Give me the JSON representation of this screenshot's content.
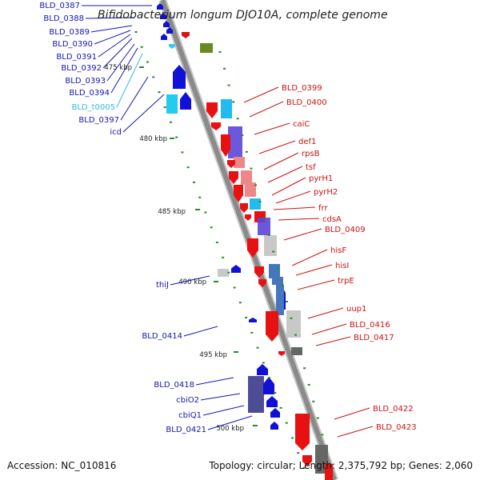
{
  "title": "Bifidobacterium longum DJO10A, complete genome",
  "accession": "Accession: NC_010816",
  "summary": "Topology: circular; Length: 2,375,792 bp; Genes: 2,060",
  "colors": {
    "left_label": "#1414b4",
    "right_label": "#cc1111",
    "trna_label": "#33bbdd",
    "tick": "#2a8a2a",
    "backbone": "#8a8a8a"
  },
  "scale_ticks": [
    "475 kbp",
    "480 kbp",
    "485 kbp",
    "490 kbp",
    "495 kbp",
    "500 kbp"
  ],
  "left_labels": [
    {
      "text": "BLD_0387",
      "kind": "cds"
    },
    {
      "text": "BLD_0388",
      "kind": "cds"
    },
    {
      "text": "BLD_0389",
      "kind": "cds"
    },
    {
      "text": "BLD_0390",
      "kind": "cds"
    },
    {
      "text": "BLD_0391",
      "kind": "cds"
    },
    {
      "text": "BLD_0392",
      "kind": "cds"
    },
    {
      "text": "BLD_0393",
      "kind": "cds"
    },
    {
      "text": "BLD_0394",
      "kind": "cds"
    },
    {
      "text": "BLD_t0005",
      "kind": "trna"
    },
    {
      "text": "BLD_0397",
      "kind": "cds"
    },
    {
      "text": "icd",
      "kind": "cds"
    },
    {
      "text": "thiJ",
      "kind": "cds"
    },
    {
      "text": "BLD_0414",
      "kind": "cds"
    },
    {
      "text": "BLD_0418",
      "kind": "cds"
    },
    {
      "text": "cbiO2",
      "kind": "cds"
    },
    {
      "text": "cbiQ1",
      "kind": "cds"
    },
    {
      "text": "BLD_0421",
      "kind": "cds"
    }
  ],
  "right_labels": [
    {
      "text": "BLD_0399"
    },
    {
      "text": "BLD_0400"
    },
    {
      "text": "caiC"
    },
    {
      "text": "def1"
    },
    {
      "text": "rpsB"
    },
    {
      "text": "tsf"
    },
    {
      "text": "pyrH1"
    },
    {
      "text": "pyrH2"
    },
    {
      "text": "frr"
    },
    {
      "text": "cdsA"
    },
    {
      "text": "BLD_0409"
    },
    {
      "text": "hisF"
    },
    {
      "text": "hisI"
    },
    {
      "text": "trpE"
    },
    {
      "text": "uup1"
    },
    {
      "text": "BLD_0416"
    },
    {
      "text": "BLD_0417"
    },
    {
      "text": "BLD_0422"
    },
    {
      "text": "BLD_0423"
    }
  ]
}
